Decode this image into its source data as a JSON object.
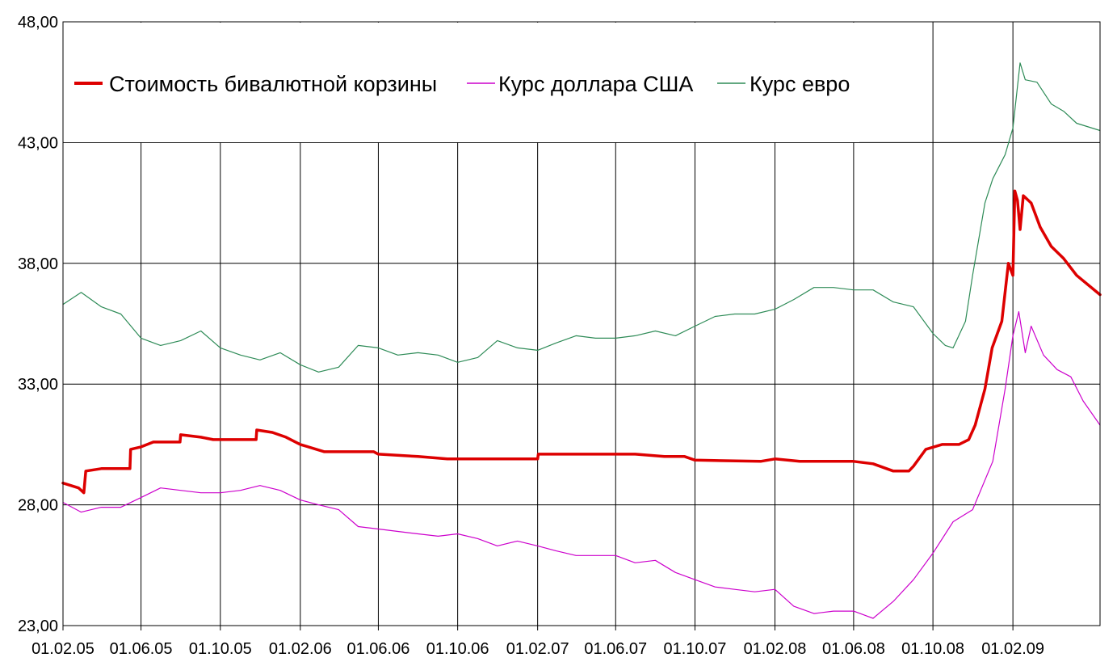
{
  "chart_data": {
    "type": "line",
    "title": "",
    "xlabel": "",
    "ylabel": "",
    "grid": true,
    "legend_placement": "top-left",
    "ylim": [
      23,
      48
    ],
    "xlim": [
      "2005-02-01",
      "2009-06-15"
    ],
    "y_ticks": [
      "23,00",
      "28,00",
      "33,00",
      "38,00",
      "43,00",
      "48,00"
    ],
    "y_tick_values": [
      23,
      28,
      33,
      38,
      43,
      48
    ],
    "x_tick_labels": [
      "01.02.05",
      "01.06.05",
      "01.10.05",
      "01.02.06",
      "01.06.06",
      "01.10.06",
      "01.02.07",
      "01.06.07",
      "01.10.07",
      "01.02.08",
      "01.06.08",
      "01.10.08",
      "01.02.09"
    ],
    "x_tick_dates": [
      "2005-02-01",
      "2005-06-01",
      "2005-10-01",
      "2006-02-01",
      "2006-06-01",
      "2006-10-01",
      "2007-02-01",
      "2007-06-01",
      "2007-10-01",
      "2008-02-01",
      "2008-06-01",
      "2008-10-01",
      "2009-02-01"
    ],
    "series": [
      {
        "name": "Стоимость бивалютной корзины",
        "color": "#dd0000",
        "line_width": 3.5,
        "points": [
          [
            "2005-02-01",
            28.9
          ],
          [
            "2005-02-25",
            28.7
          ],
          [
            "2005-03-05",
            28.5
          ],
          [
            "2005-03-08",
            29.4
          ],
          [
            "2005-04-01",
            29.5
          ],
          [
            "2005-05-15",
            29.5
          ],
          [
            "2005-05-16",
            30.3
          ],
          [
            "2005-06-01",
            30.4
          ],
          [
            "2005-06-20",
            30.6
          ],
          [
            "2005-07-31",
            30.6
          ],
          [
            "2005-08-01",
            30.9
          ],
          [
            "2005-09-01",
            30.8
          ],
          [
            "2005-09-20",
            30.7
          ],
          [
            "2005-11-25",
            30.7
          ],
          [
            "2005-11-26",
            31.1
          ],
          [
            "2005-12-20",
            31.0
          ],
          [
            "2006-01-10",
            30.8
          ],
          [
            "2006-02-01",
            30.5
          ],
          [
            "2006-03-10",
            30.2
          ],
          [
            "2006-05-25",
            30.2
          ],
          [
            "2006-06-01",
            30.1
          ],
          [
            "2006-08-01",
            30.0
          ],
          [
            "2006-09-15",
            29.9
          ],
          [
            "2007-02-01",
            29.9
          ],
          [
            "2007-02-02",
            30.1
          ],
          [
            "2007-06-01",
            30.1
          ],
          [
            "2007-07-01",
            30.1
          ],
          [
            "2007-08-15",
            30.0
          ],
          [
            "2007-09-15",
            30.0
          ],
          [
            "2007-10-01",
            29.85
          ],
          [
            "2008-01-10",
            29.8
          ],
          [
            "2008-02-01",
            29.9
          ],
          [
            "2008-03-10",
            29.8
          ],
          [
            "2008-06-01",
            29.8
          ],
          [
            "2008-07-01",
            29.7
          ],
          [
            "2008-08-01",
            29.4
          ],
          [
            "2008-08-25",
            29.4
          ],
          [
            "2008-09-01",
            29.6
          ],
          [
            "2008-09-20",
            30.3
          ],
          [
            "2008-10-15",
            30.5
          ],
          [
            "2008-11-10",
            30.5
          ],
          [
            "2008-11-25",
            30.7
          ],
          [
            "2008-12-05",
            31.3
          ],
          [
            "2008-12-20",
            32.8
          ],
          [
            "2008-12-31",
            34.5
          ],
          [
            "2009-01-15",
            35.6
          ],
          [
            "2009-01-25",
            38.0
          ],
          [
            "2009-02-01",
            37.5
          ],
          [
            "2009-02-04",
            41.0
          ],
          [
            "2009-02-08",
            40.6
          ],
          [
            "2009-02-12",
            39.4
          ],
          [
            "2009-02-17",
            40.8
          ],
          [
            "2009-03-01",
            40.5
          ],
          [
            "2009-03-15",
            39.5
          ],
          [
            "2009-04-01",
            38.7
          ],
          [
            "2009-04-20",
            38.2
          ],
          [
            "2009-05-10",
            37.5
          ],
          [
            "2009-06-15",
            36.7
          ]
        ]
      },
      {
        "name": "Курс доллара США",
        "color": "#cc00cc",
        "line_width": 1.2,
        "points": [
          [
            "2005-02-01",
            28.1
          ],
          [
            "2005-03-01",
            27.7
          ],
          [
            "2005-04-01",
            27.9
          ],
          [
            "2005-05-01",
            27.9
          ],
          [
            "2005-06-01",
            28.3
          ],
          [
            "2005-07-01",
            28.7
          ],
          [
            "2005-08-01",
            28.6
          ],
          [
            "2005-09-01",
            28.5
          ],
          [
            "2005-10-01",
            28.5
          ],
          [
            "2005-11-01",
            28.6
          ],
          [
            "2005-12-01",
            28.8
          ],
          [
            "2006-01-01",
            28.6
          ],
          [
            "2006-02-01",
            28.2
          ],
          [
            "2006-03-01",
            28.0
          ],
          [
            "2006-04-01",
            27.8
          ],
          [
            "2006-05-01",
            27.1
          ],
          [
            "2006-06-01",
            27.0
          ],
          [
            "2006-07-01",
            26.9
          ],
          [
            "2006-08-01",
            26.8
          ],
          [
            "2006-09-01",
            26.7
          ],
          [
            "2006-10-01",
            26.8
          ],
          [
            "2006-11-01",
            26.6
          ],
          [
            "2006-12-01",
            26.3
          ],
          [
            "2007-01-01",
            26.5
          ],
          [
            "2007-02-01",
            26.3
          ],
          [
            "2007-03-01",
            26.1
          ],
          [
            "2007-04-01",
            25.9
          ],
          [
            "2007-05-01",
            25.9
          ],
          [
            "2007-06-01",
            25.9
          ],
          [
            "2007-07-01",
            25.6
          ],
          [
            "2007-08-01",
            25.7
          ],
          [
            "2007-09-01",
            25.2
          ],
          [
            "2007-10-01",
            24.9
          ],
          [
            "2007-11-01",
            24.6
          ],
          [
            "2007-12-01",
            24.5
          ],
          [
            "2008-01-01",
            24.4
          ],
          [
            "2008-02-01",
            24.5
          ],
          [
            "2008-03-01",
            23.8
          ],
          [
            "2008-04-01",
            23.5
          ],
          [
            "2008-05-01",
            23.6
          ],
          [
            "2008-06-01",
            23.6
          ],
          [
            "2008-07-01",
            23.3
          ],
          [
            "2008-08-01",
            24.0
          ],
          [
            "2008-09-01",
            24.9
          ],
          [
            "2008-10-01",
            26.0
          ],
          [
            "2008-11-01",
            27.3
          ],
          [
            "2008-12-01",
            27.8
          ],
          [
            "2009-01-01",
            29.8
          ],
          [
            "2009-01-20",
            32.8
          ],
          [
            "2009-02-01",
            35.0
          ],
          [
            "2009-02-10",
            36.0
          ],
          [
            "2009-02-20",
            34.3
          ],
          [
            "2009-03-01",
            35.4
          ],
          [
            "2009-03-20",
            34.2
          ],
          [
            "2009-04-10",
            33.6
          ],
          [
            "2009-05-01",
            33.3
          ],
          [
            "2009-05-20",
            32.3
          ],
          [
            "2009-06-15",
            31.3
          ]
        ]
      },
      {
        "name": "Курс евро",
        "color": "#2e8b57",
        "line_width": 1.2,
        "points": [
          [
            "2005-02-01",
            36.3
          ],
          [
            "2005-03-01",
            36.8
          ],
          [
            "2005-04-01",
            36.2
          ],
          [
            "2005-05-01",
            35.9
          ],
          [
            "2005-06-01",
            34.9
          ],
          [
            "2005-07-01",
            34.6
          ],
          [
            "2005-08-01",
            34.8
          ],
          [
            "2005-09-01",
            35.2
          ],
          [
            "2005-10-01",
            34.5
          ],
          [
            "2005-11-01",
            34.2
          ],
          [
            "2005-12-01",
            34.0
          ],
          [
            "2006-01-01",
            34.3
          ],
          [
            "2006-02-01",
            33.8
          ],
          [
            "2006-03-01",
            33.5
          ],
          [
            "2006-04-01",
            33.7
          ],
          [
            "2006-05-01",
            34.6
          ],
          [
            "2006-06-01",
            34.5
          ],
          [
            "2006-07-01",
            34.2
          ],
          [
            "2006-08-01",
            34.3
          ],
          [
            "2006-09-01",
            34.2
          ],
          [
            "2006-10-01",
            33.9
          ],
          [
            "2006-11-01",
            34.1
          ],
          [
            "2006-12-01",
            34.8
          ],
          [
            "2007-01-01",
            34.5
          ],
          [
            "2007-02-01",
            34.4
          ],
          [
            "2007-03-01",
            34.7
          ],
          [
            "2007-04-01",
            35.0
          ],
          [
            "2007-05-01",
            34.9
          ],
          [
            "2007-06-01",
            34.9
          ],
          [
            "2007-07-01",
            35.0
          ],
          [
            "2007-08-01",
            35.2
          ],
          [
            "2007-09-01",
            35.0
          ],
          [
            "2007-10-01",
            35.4
          ],
          [
            "2007-11-01",
            35.8
          ],
          [
            "2007-12-01",
            35.9
          ],
          [
            "2008-01-01",
            35.9
          ],
          [
            "2008-02-01",
            36.1
          ],
          [
            "2008-03-01",
            36.5
          ],
          [
            "2008-04-01",
            37.0
          ],
          [
            "2008-05-01",
            37.0
          ],
          [
            "2008-06-01",
            36.9
          ],
          [
            "2008-07-01",
            36.9
          ],
          [
            "2008-08-01",
            36.4
          ],
          [
            "2008-09-01",
            36.2
          ],
          [
            "2008-10-01",
            35.1
          ],
          [
            "2008-10-20",
            34.6
          ],
          [
            "2008-11-01",
            34.5
          ],
          [
            "2008-11-20",
            35.6
          ],
          [
            "2008-12-01",
            37.5
          ],
          [
            "2008-12-20",
            40.5
          ],
          [
            "2009-01-01",
            41.5
          ],
          [
            "2009-01-20",
            42.5
          ],
          [
            "2009-02-01",
            43.6
          ],
          [
            "2009-02-12",
            46.3
          ],
          [
            "2009-02-20",
            45.6
          ],
          [
            "2009-03-10",
            45.5
          ],
          [
            "2009-04-01",
            44.6
          ],
          [
            "2009-04-20",
            44.3
          ],
          [
            "2009-05-10",
            43.8
          ],
          [
            "2009-06-15",
            43.5
          ]
        ]
      }
    ]
  }
}
